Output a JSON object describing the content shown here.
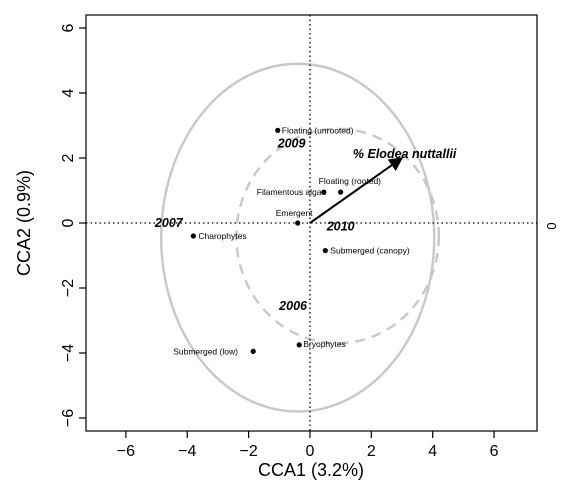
{
  "chart_data": {
    "type": "scatter",
    "xlabel": "CCA1 (3.2%)",
    "ylabel": "CCA2 (0.9%)",
    "xlim": [
      -7.3,
      7.4
    ],
    "ylim": [
      -6.4,
      6.4
    ],
    "xticks": [
      -6,
      -4,
      -2,
      0,
      2,
      4,
      6
    ],
    "yticks": [
      -6,
      -4,
      -2,
      0,
      2,
      4,
      6
    ],
    "xtick_labels": [
      "−6",
      "−4",
      "−2",
      "0",
      "2",
      "4",
      "6"
    ],
    "ytick_labels": [
      "−6",
      "−4",
      "−2",
      "0",
      "2",
      "4",
      "6"
    ],
    "grid": false,
    "reference_lines": {
      "x": 0,
      "y": 0,
      "style": "dotted"
    },
    "right_axis_label": "0",
    "points": [
      {
        "label": "Floating (unrooted)",
        "x": -1.05,
        "y": 2.85
      },
      {
        "label": "Filamentous algae",
        "x": 0.45,
        "y": 0.95
      },
      {
        "label": "Floating (rooted)",
        "x": 1.0,
        "y": 0.95
      },
      {
        "label": "Emergent",
        "x": -0.4,
        "y": 0.0
      },
      {
        "label": "Charophytes",
        "x": -3.8,
        "y": -0.4
      },
      {
        "label": "Submerged (canopy)",
        "x": 0.5,
        "y": -0.85
      },
      {
        "label": "Bryophytes",
        "x": -0.35,
        "y": -3.75
      },
      {
        "label": "Submerged (low)",
        "x": -1.85,
        "y": -3.95
      }
    ],
    "year_labels": [
      {
        "label": "2009",
        "x": -0.6,
        "y": 2.45
      },
      {
        "label": "2007",
        "x": -4.6,
        "y": 0.0
      },
      {
        "label": "2010",
        "x": 1.0,
        "y": -0.1
      },
      {
        "label": "2006",
        "x": -0.55,
        "y": -2.55
      }
    ],
    "vector": {
      "label": "% Elodea nuttallii",
      "from": [
        0,
        0
      ],
      "to": [
        3.0,
        2.0
      ],
      "label_at": [
        1.4,
        2.0
      ]
    },
    "ellipses": [
      {
        "name": "solid",
        "cx": -0.4,
        "cy": -0.45,
        "rx": 4.45,
        "ry": 5.35,
        "style": "solid",
        "color": "#c8c8c8"
      },
      {
        "name": "dashed",
        "cx": 0.9,
        "cy": -0.4,
        "rx": 3.3,
        "ry": 3.3,
        "style": "dashed",
        "color": "#c8c8c8"
      }
    ]
  }
}
